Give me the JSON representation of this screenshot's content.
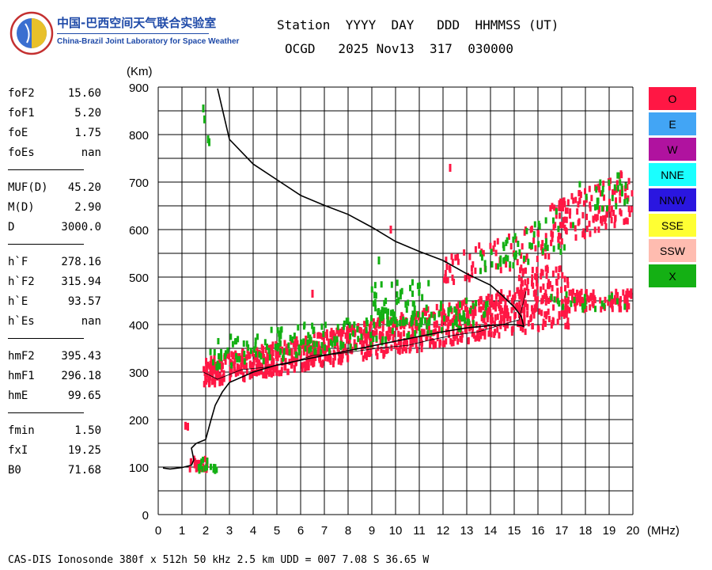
{
  "logo": {
    "title_cn": "中国-巴西空间天气联合实验室",
    "title_en": "China-Brazil Joint Laboratory for Space Weather"
  },
  "header": {
    "line1": "Station  YYYY  DAY   DDD  HHMMSS (UT)",
    "line2": "OCGD   2025 Nov13  317  030000"
  },
  "parameters": [
    [
      {
        "name": "foF2",
        "value": "15.60"
      },
      {
        "name": "foF1",
        "value": "5.20"
      },
      {
        "name": "foE",
        "value": "1.75"
      },
      {
        "name": "foEs",
        "value": "nan"
      }
    ],
    [
      {
        "name": "MUF(D)",
        "value": "45.20"
      },
      {
        "name": "M(D)",
        "value": "2.90"
      },
      {
        "name": "D",
        "value": "3000.0"
      }
    ],
    [
      {
        "name": "h`F",
        "value": "278.16"
      },
      {
        "name": "h`F2",
        "value": "315.94"
      },
      {
        "name": "h`E",
        "value": "93.57"
      },
      {
        "name": "h`Es",
        "value": "nan"
      }
    ],
    [
      {
        "name": "hmF2",
        "value": "395.43"
      },
      {
        "name": "hmF1",
        "value": "296.18"
      },
      {
        "name": "hmE",
        "value": "99.65"
      }
    ],
    [
      {
        "name": "fmin",
        "value": "1.50"
      },
      {
        "name": "fxI",
        "value": "19.25"
      },
      {
        "name": "B0",
        "value": "71.68"
      }
    ]
  ],
  "legend": [
    {
      "label": "O",
      "color": "#ff1744"
    },
    {
      "label": "E",
      "color": "#42a5f5"
    },
    {
      "label": "W",
      "color": "#b0129f"
    },
    {
      "label": "NNE",
      "color": "#1affff"
    },
    {
      "label": "NNW",
      "color": "#2a16e0"
    },
    {
      "label": "SSE",
      "color": "#ffff33"
    },
    {
      "label": "SSW",
      "color": "#ffbcb0"
    },
    {
      "label": "X",
      "color": "#14b014"
    }
  ],
  "footer": "CAS-DIS Ionosonde 380f x 512h 50 kHz 2.5 km UDD = 007 7.08 S 36.65 W",
  "chart_data": {
    "type": "scatter",
    "xlabel": "(MHz)",
    "ylabel": "(Km)",
    "xlim": [
      0,
      20
    ],
    "ylim": [
      0,
      900
    ],
    "x_ticks": [
      0,
      1,
      2,
      3,
      4,
      5,
      6,
      7,
      8,
      9,
      10,
      11,
      12,
      13,
      14,
      15,
      16,
      17,
      18,
      19,
      20
    ],
    "y_ticks": [
      0,
      100,
      200,
      300,
      400,
      500,
      600,
      700,
      800,
      900
    ],
    "grid": true,
    "series": [
      {
        "mode": "O",
        "color": "#ff1744",
        "bands": [
          {
            "x": [
              1.3,
              2.1
            ],
            "y": [
              92,
              118
            ],
            "density": 25
          },
          {
            "x": [
              1.9,
              15.5
            ],
            "y_start": [
              270,
              325
            ],
            "y_end": [
              385,
              480
            ],
            "density": 900
          },
          {
            "x": [
              15.2,
              17.3
            ],
            "y": [
              390,
              520
            ],
            "density": 150
          },
          {
            "x": [
              17.0,
              20.0
            ],
            "y": [
              430,
              470
            ],
            "density": 90
          },
          {
            "x": [
              12.0,
              16.5
            ],
            "y_start": [
              480,
              540
            ],
            "y_end": [
              540,
              620
            ],
            "density": 70
          },
          {
            "x": [
              16.5,
              20.0
            ],
            "y_start": [
              560,
              650
            ],
            "y_end": [
              620,
              730
            ],
            "density": 140
          }
        ],
        "isolated": [
          [
            1.15,
            187
          ],
          [
            1.25,
            185
          ],
          [
            9.8,
            600
          ],
          [
            12.3,
            730
          ],
          [
            6.5,
            465
          ]
        ]
      },
      {
        "mode": "X",
        "color": "#14b014",
        "bands": [
          {
            "x": [
              1.6,
              2.5
            ],
            "y": [
              90,
              120
            ],
            "density": 15
          },
          {
            "x": [
              2.2,
              14.0
            ],
            "y_start": [
              300,
              370
            ],
            "y_end": [
              400,
              460
            ],
            "density": 200
          },
          {
            "x": [
              9.0,
              11.5
            ],
            "y": [
              400,
              490
            ],
            "density": 60
          },
          {
            "x": [
              13.5,
              17.5
            ],
            "y_start": [
              500,
              560
            ],
            "y_end": [
              560,
              660
            ],
            "density": 50
          },
          {
            "x": [
              17.5,
              19.8
            ],
            "y_start": [
              630,
              700
            ],
            "y_end": [
              650,
              720
            ],
            "density": 25
          },
          {
            "x": [
              16.5,
              19.8
            ],
            "y": [
              430,
              465
            ],
            "density": 20
          }
        ],
        "isolated": [
          [
            1.9,
            855
          ],
          [
            1.95,
            832
          ],
          [
            2.1,
            790
          ],
          [
            2.15,
            784
          ],
          [
            9.3,
            535
          ],
          [
            11.0,
            395
          ]
        ]
      }
    ],
    "profile": {
      "color": "#000000",
      "x": [
        0.2,
        0.5,
        1.0,
        1.4,
        1.5,
        1.4,
        1.6,
        2.0,
        2.2,
        2.4,
        2.7,
        3.0,
        4.0,
        5.0,
        6.0,
        7.0,
        8.0,
        9.0,
        10.0,
        11.0,
        12.0,
        13.0,
        14.0,
        14.5,
        15.0,
        15.3,
        15.4,
        15.3,
        15.0,
        14.5,
        14.0,
        13.0,
        12.0,
        11.0,
        10.0,
        9.0,
        8.0,
        7.0,
        6.0,
        5.0,
        4.0,
        3.0,
        2.5
      ],
      "y": [
        98,
        96,
        99,
        104,
        115,
        140,
        150,
        158,
        195,
        230,
        258,
        278,
        300,
        315,
        325,
        335,
        345,
        355,
        365,
        375,
        385,
        393,
        398,
        400,
        400,
        398,
        396,
        417,
        437,
        461,
        483,
        507,
        535,
        554,
        575,
        605,
        632,
        651,
        672,
        705,
        738,
        790,
        897
      ]
    },
    "virtual_trace": {
      "color": "#000000",
      "x": [
        1.9,
        2.5,
        3.5,
        4.5,
        5.5,
        6.5,
        7.5,
        8.5,
        9.5,
        10.5,
        11.5,
        12.5,
        13.5,
        14.5,
        15.2,
        15.5
      ],
      "y": [
        300,
        285,
        305,
        310,
        318,
        335,
        338,
        345,
        352,
        356,
        368,
        378,
        385,
        400,
        410,
        470
      ]
    }
  }
}
